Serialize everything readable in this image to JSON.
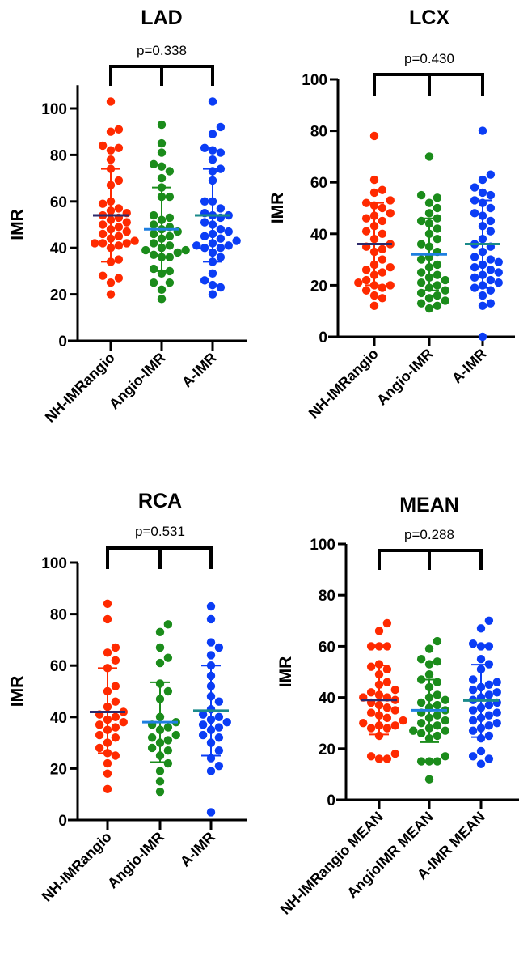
{
  "colors": {
    "red": "#ff2a00",
    "green": "#1b8c1b",
    "blue": "#0b3df5",
    "mean_red": "#2e2a6b",
    "mean_green": "#1e7fe0",
    "mean_blue": "#1a8a8a"
  },
  "chart_data": [
    {
      "type": "scatter",
      "title": "LAD",
      "ylabel": "IMR",
      "ylim": [
        0,
        110
      ],
      "yticks": [
        0,
        20,
        40,
        60,
        80,
        100
      ],
      "pvalue": "p=0.338",
      "categories": [
        "NH-IMRangio",
        "Angio-IMR",
        "A-IMR"
      ],
      "series": [
        {
          "name": "NH-IMRangio",
          "mean": 54,
          "sd_low": 34,
          "sd_high": 74,
          "values": [
            103,
            91,
            90,
            84,
            83,
            82,
            78,
            74,
            69,
            67,
            60,
            59,
            57,
            56,
            55,
            54,
            53,
            52,
            51,
            50,
            49,
            48,
            47,
            46,
            45,
            44,
            43,
            42,
            42,
            42,
            41,
            40,
            35,
            34,
            28,
            27,
            25,
            20
          ]
        },
        {
          "name": "Angio-IMR",
          "mean": 48,
          "sd_low": 30,
          "sd_high": 66,
          "values": [
            93,
            85,
            81,
            76,
            75,
            73,
            70,
            66,
            62,
            62,
            54,
            53,
            52,
            50,
            49,
            48,
            47,
            46,
            45,
            44,
            42,
            41,
            40,
            39,
            39,
            38,
            37,
            36,
            36,
            31,
            30,
            29,
            25,
            25,
            22,
            18
          ]
        },
        {
          "name": "A-IMR",
          "mean": 54,
          "sd_low": 34,
          "sd_high": 74,
          "values": [
            103,
            92,
            89,
            83,
            82,
            81,
            78,
            74,
            73,
            69,
            60,
            60,
            57,
            55,
            54,
            54,
            53,
            51,
            50,
            48,
            47,
            46,
            45,
            44,
            43,
            42,
            41,
            41,
            40,
            40,
            38,
            36,
            34,
            29,
            26,
            24,
            23,
            20
          ]
        }
      ]
    },
    {
      "type": "scatter",
      "title": "LCX",
      "ylabel": "IMR",
      "ylim": [
        0,
        100
      ],
      "yticks": [
        0,
        20,
        40,
        60,
        80,
        100
      ],
      "pvalue": "p=0.430",
      "categories": [
        "NH-IMRangio",
        "Angio-IMR",
        "A-IMR"
      ],
      "series": [
        {
          "name": "NH-IMRangio",
          "mean": 36,
          "sd_low": 20,
          "sd_high": 52,
          "values": [
            78,
            61,
            57,
            56,
            53,
            52,
            51,
            50,
            48,
            47,
            46,
            45,
            43,
            41,
            40,
            38,
            36,
            35,
            34,
            33,
            30,
            28,
            27,
            26,
            25,
            24,
            22,
            21,
            20,
            20,
            19,
            18,
            16,
            15,
            12
          ]
        },
        {
          "name": "Angio-IMR",
          "mean": 32,
          "sd_low": 18,
          "sd_high": 46,
          "values": [
            70,
            55,
            54,
            52,
            50,
            48,
            46,
            45,
            44,
            42,
            40,
            38,
            36,
            35,
            33,
            31,
            30,
            28,
            27,
            25,
            24,
            23,
            22,
            21,
            20,
            19,
            18,
            17,
            16,
            15,
            14,
            13,
            12,
            11
          ]
        },
        {
          "name": "A-IMR",
          "mean": 36,
          "sd_low": 19,
          "sd_high": 53,
          "values": [
            80,
            63,
            61,
            58,
            56,
            55,
            53,
            52,
            50,
            48,
            47,
            45,
            43,
            41,
            38,
            36,
            35,
            33,
            31,
            30,
            29,
            28,
            27,
            26,
            25,
            24,
            23,
            22,
            21,
            20,
            19,
            18,
            16,
            13,
            12,
            0
          ]
        }
      ]
    },
    {
      "type": "scatter",
      "title": "RCA",
      "ylabel": "IMR",
      "ylim": [
        0,
        100
      ],
      "yticks": [
        0,
        20,
        40,
        60,
        80,
        100
      ],
      "pvalue": "p=0.531",
      "categories": [
        "NH-IMRangio",
        "Angio-IMR",
        "A-IMR"
      ],
      "series": [
        {
          "name": "NH-IMRangio",
          "mean": 42,
          "sd_low": 26,
          "sd_high": 59,
          "values": [
            84,
            78,
            67,
            65,
            62,
            59,
            52,
            50,
            46,
            44,
            42,
            41,
            40,
            39,
            38,
            37,
            36,
            35,
            33,
            32,
            30,
            28,
            26,
            25,
            22,
            18,
            12
          ]
        },
        {
          "name": "Angio-IMR",
          "mean": 38,
          "sd_low": 22.5,
          "sd_high": 53.5,
          "values": [
            76,
            73,
            67,
            63,
            61,
            53,
            50,
            47,
            40,
            38,
            37,
            36,
            35,
            33,
            32,
            31,
            30,
            28,
            27,
            25,
            22,
            19,
            15,
            11
          ]
        },
        {
          "name": "A-IMR",
          "mean": 42.5,
          "sd_low": 25,
          "sd_high": 60,
          "values": [
            83,
            78,
            69,
            67,
            64,
            60,
            56,
            52,
            48,
            46,
            43,
            41,
            40,
            39,
            38,
            37,
            36,
            35,
            33,
            32,
            30,
            27,
            24,
            21,
            19,
            3
          ]
        }
      ]
    },
    {
      "type": "scatter",
      "title": "MEAN",
      "ylabel": "IMR",
      "ylim": [
        0,
        100
      ],
      "yticks": [
        0,
        20,
        40,
        60,
        80,
        100
      ],
      "pvalue": "p=0.288",
      "categories": [
        "NH-IMRangio MEAN",
        "AngioIMR MEAN",
        "A-IMR MEAN"
      ],
      "series": [
        {
          "name": "NH-IMRangio MEAN",
          "mean": 39,
          "sd_low": 25.5,
          "sd_high": 52.5,
          "values": [
            69,
            66,
            60,
            60,
            60,
            53,
            52,
            51,
            49,
            46,
            45,
            43,
            42,
            41,
            40,
            40,
            39,
            38,
            37,
            36,
            35,
            34,
            33,
            32,
            31,
            30,
            29,
            29,
            28,
            28,
            25,
            18,
            17,
            16,
            16
          ]
        },
        {
          "name": "AngioIMR MEAN",
          "mean": 35,
          "sd_low": 22.5,
          "sd_high": 47,
          "values": [
            62,
            59,
            55,
            54,
            53,
            49,
            47,
            46,
            44,
            41,
            40,
            39,
            38,
            37,
            36,
            35,
            34,
            33,
            32,
            31,
            30,
            29,
            28,
            27,
            27,
            26,
            25,
            24,
            17,
            15,
            15,
            15,
            8
          ]
        },
        {
          "name": "A-IMR MEAN",
          "mean": 38.8,
          "sd_low": 24.5,
          "sd_high": 52.8,
          "values": [
            70,
            67,
            61,
            60,
            60,
            55,
            53,
            51,
            47,
            46,
            45,
            44,
            43,
            42,
            41,
            40,
            39,
            38,
            37,
            36,
            35,
            34,
            33,
            32,
            31,
            30,
            29,
            28,
            27,
            25,
            24,
            19,
            17,
            16,
            14
          ]
        }
      ]
    }
  ]
}
